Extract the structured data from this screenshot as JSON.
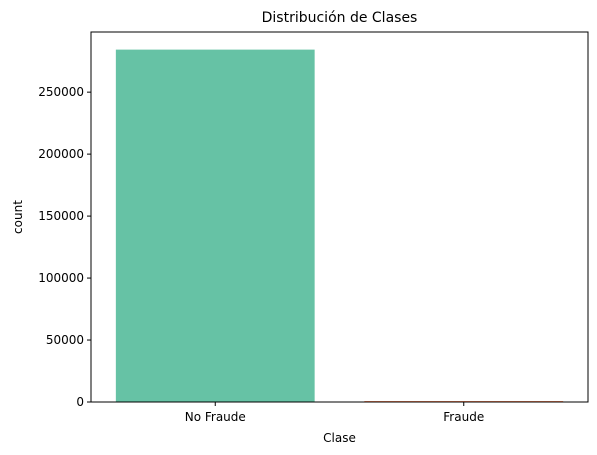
{
  "chart_data": {
    "type": "bar",
    "title": "Distribución de Clases",
    "xlabel": "Clase",
    "ylabel": "count",
    "categories": [
      "No Fraude",
      "Fraude"
    ],
    "values": [
      284315,
      492
    ],
    "colors": [
      "#66c2a5",
      "#fc8d62"
    ],
    "ylim": [
      0,
      298531
    ],
    "yticks": [
      0,
      50000,
      100000,
      150000,
      200000,
      250000
    ],
    "ytick_labels": [
      "0",
      "50000",
      "100000",
      "150000",
      "200000",
      "250000"
    ],
    "grid": false,
    "legend": "none"
  }
}
